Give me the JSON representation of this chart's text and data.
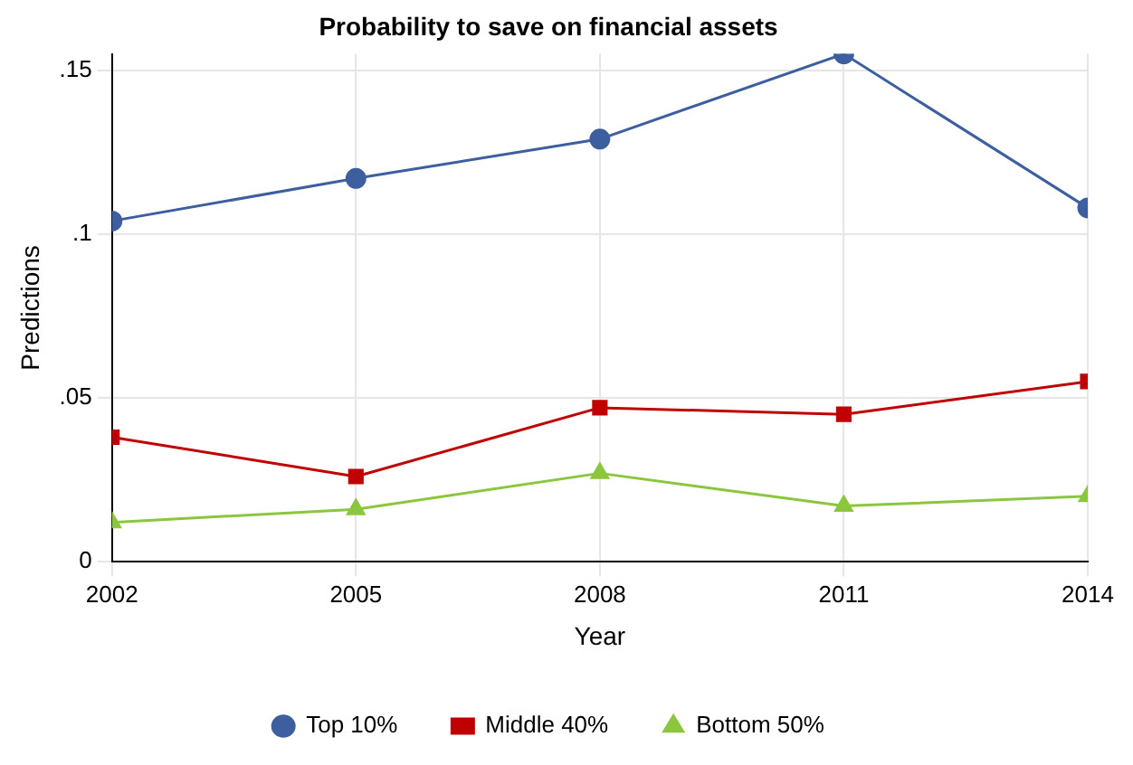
{
  "chart_data": {
    "type": "line",
    "title": "Probability to save on financial assets",
    "xlabel": "Year",
    "ylabel": "Predictions",
    "x": [
      2002,
      2005,
      2008,
      2011,
      2014
    ],
    "xlim": [
      2002,
      2014
    ],
    "xticks": [
      2002,
      2005,
      2008,
      2011,
      2014
    ],
    "ylim": [
      0,
      0.155
    ],
    "yticks": [
      {
        "value": 0,
        "label": "0"
      },
      {
        "value": 0.05,
        "label": ".05"
      },
      {
        "value": 0.1,
        "label": ".1"
      },
      {
        "value": 0.15,
        "label": ".15"
      }
    ],
    "grid": true,
    "legend": "bottom",
    "line_style": "solid",
    "series": [
      {
        "name": "Top 10%",
        "color": "#3d5f9f",
        "marker": "circle",
        "values": [
          0.104,
          0.117,
          0.129,
          0.155,
          0.108
        ]
      },
      {
        "name": "Middle 40%",
        "color": "#c00000",
        "marker": "square",
        "values": [
          0.038,
          0.026,
          0.047,
          0.045,
          0.055
        ]
      },
      {
        "name": "Bottom 50%",
        "color": "#8cc63f",
        "marker": "triangle",
        "values": [
          0.012,
          0.016,
          0.027,
          0.017,
          0.02
        ]
      }
    ]
  }
}
